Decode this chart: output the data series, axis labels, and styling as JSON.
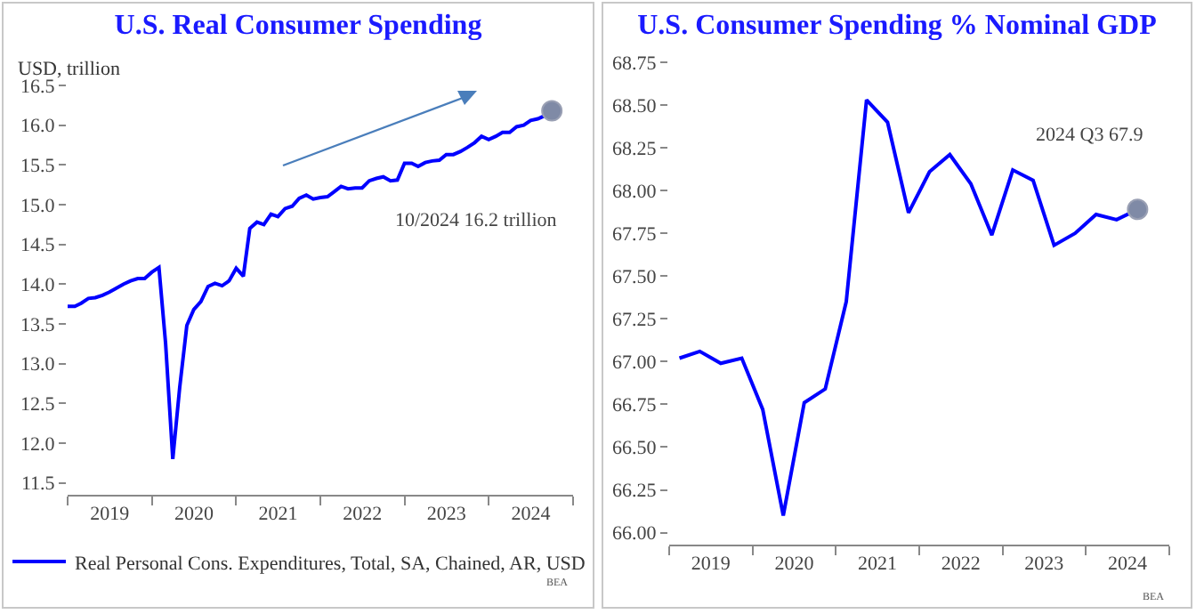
{
  "chart_data": [
    {
      "type": "line",
      "title": "U.S. Real Consumer Spending",
      "ylabel": "USD, trillion",
      "legend": "bottom",
      "grid": false,
      "line_style": "solid",
      "xlim": [
        "2019-01-01",
        "2025-01-01"
      ],
      "ylim": [
        11.35,
        16.5
      ],
      "xticks": [
        {
          "value": "2019-01-01",
          "label": null
        },
        {
          "value": "2019-07-02",
          "label": "2019"
        },
        {
          "value": "2020-01-01",
          "label": null
        },
        {
          "value": "2020-07-02",
          "label": "2020"
        },
        {
          "value": "2021-01-01",
          "label": null
        },
        {
          "value": "2021-07-02",
          "label": "2021"
        },
        {
          "value": "2022-01-01",
          "label": null
        },
        {
          "value": "2022-07-02",
          "label": "2022"
        },
        {
          "value": "2023-01-01",
          "label": null
        },
        {
          "value": "2023-07-02",
          "label": "2023"
        },
        {
          "value": "2024-01-01",
          "label": null
        },
        {
          "value": "2024-07-02",
          "label": "2024"
        },
        {
          "value": "2025-01-01",
          "label": null
        }
      ],
      "yticks": [
        11.5,
        {
          "value": 12,
          "label": "12.0"
        },
        12.5,
        {
          "value": 13,
          "label": "13.0"
        },
        13.5,
        {
          "value": 14,
          "label": "14.0"
        },
        14.5,
        {
          "value": 15,
          "label": "15.0"
        },
        15.5,
        {
          "value": 16,
          "label": "16.0"
        },
        16.5
      ],
      "annotations": [
        "10/2024 16.2 trillion",
        "BEA"
      ],
      "series": [
        {
          "name": "Real Personal Cons. Expenditures, Total, SA, Chained, AR, USD",
          "color": "#0000ff",
          "x": [
            "2019-01",
            "2019-02",
            "2019-03",
            "2019-04",
            "2019-05",
            "2019-06",
            "2019-07",
            "2019-08",
            "2019-09",
            "2019-10",
            "2019-11",
            "2019-12",
            "2020-01",
            "2020-02",
            "2020-03",
            "2020-04",
            "2020-05",
            "2020-06",
            "2020-07",
            "2020-08",
            "2020-09",
            "2020-10",
            "2020-11",
            "2020-12",
            "2021-01",
            "2021-02",
            "2021-03",
            "2021-04",
            "2021-05",
            "2021-06",
            "2021-07",
            "2021-08",
            "2021-09",
            "2021-10",
            "2021-11",
            "2021-12",
            "2022-01",
            "2022-02",
            "2022-03",
            "2022-04",
            "2022-05",
            "2022-06",
            "2022-07",
            "2022-08",
            "2022-09",
            "2022-10",
            "2022-11",
            "2022-12",
            "2023-01",
            "2023-02",
            "2023-03",
            "2023-04",
            "2023-05",
            "2023-06",
            "2023-07",
            "2023-08",
            "2023-09",
            "2023-10",
            "2023-11",
            "2023-12",
            "2024-01",
            "2024-02",
            "2024-03",
            "2024-04",
            "2024-05",
            "2024-06",
            "2024-07",
            "2024-08",
            "2024-09",
            "2024-10"
          ],
          "values": [
            13.72,
            13.72,
            13.76,
            13.82,
            13.83,
            13.86,
            13.9,
            13.95,
            14.0,
            14.04,
            14.07,
            14.07,
            14.15,
            14.21,
            13.25,
            11.8,
            12.7,
            13.48,
            13.68,
            13.78,
            13.97,
            14.01,
            13.98,
            14.04,
            14.2,
            14.1,
            14.7,
            14.78,
            14.75,
            14.88,
            14.85,
            14.95,
            14.98,
            15.08,
            15.12,
            15.07,
            15.09,
            15.1,
            15.16,
            15.23,
            15.2,
            15.21,
            15.21,
            15.3,
            15.33,
            15.35,
            15.3,
            15.31,
            15.52,
            15.52,
            15.48,
            15.53,
            15.55,
            15.56,
            15.63,
            15.63,
            15.67,
            15.72,
            15.78,
            15.86,
            15.82,
            15.86,
            15.91,
            15.91,
            15.98,
            16.0,
            16.06,
            16.08,
            16.12,
            16.18
          ]
        },
        {
          "type": "scatter",
          "color": "#7f8aa6",
          "x": [
            "2024-10"
          ],
          "values": [
            16.18
          ]
        }
      ]
    },
    {
      "type": "line",
      "title": "U.S. Consumer Spending % Nominal GDP",
      "grid": false,
      "line_style": "solid",
      "legend": false,
      "xlim": [
        "2019-01-01",
        "2025-01-01"
      ],
      "ylim": [
        65.93,
        68.75
      ],
      "xticks": [
        {
          "value": "2019-01-01",
          "label": null
        },
        {
          "value": "2019-07-02",
          "label": "2019"
        },
        {
          "value": "2020-01-01",
          "label": null
        },
        {
          "value": "2020-07-02",
          "label": "2020"
        },
        {
          "value": "2021-01-01",
          "label": null
        },
        {
          "value": "2021-07-02",
          "label": "2021"
        },
        {
          "value": "2022-01-01",
          "label": null
        },
        {
          "value": "2022-07-02",
          "label": "2022"
        },
        {
          "value": "2023-01-01",
          "label": null
        },
        {
          "value": "2023-07-02",
          "label": "2023"
        },
        {
          "value": "2024-01-01",
          "label": null
        },
        {
          "value": "2024-07-02",
          "label": "2024"
        },
        {
          "value": "2025-01-01",
          "label": null
        }
      ],
      "yticks": [
        {
          "value": 66,
          "label": "66.00"
        },
        66.25,
        {
          "value": 66.5,
          "label": "66.50"
        },
        66.75,
        {
          "value": 67,
          "label": "67.00"
        },
        67.25,
        {
          "value": 67.5,
          "label": "67.50"
        },
        67.75,
        {
          "value": 68,
          "label": "68.00"
        },
        68.25,
        {
          "value": 68.5,
          "label": "68.50"
        },
        68.75
      ],
      "annotations": [
        "2024 Q3 67.9",
        "BEA"
      ],
      "series": [
        {
          "color": "#0000ff",
          "x": [
            "2019-02-15",
            "2019-05-15",
            "2019-08-15",
            "2019-11-15",
            "2020-02-15",
            "2020-05-15",
            "2020-08-15",
            "2020-11-15",
            "2021-02-15",
            "2021-05-15",
            "2021-08-15",
            "2021-11-15",
            "2022-02-15",
            "2022-05-15",
            "2022-08-15",
            "2022-11-15",
            "2023-02-15",
            "2023-05-15",
            "2023-08-15",
            "2023-11-15",
            "2024-02-15",
            "2024-05-15",
            "2024-08-15"
          ],
          "values": [
            67.02,
            67.06,
            66.99,
            67.02,
            66.72,
            66.1,
            66.76,
            66.84,
            67.35,
            68.53,
            68.4,
            67.87,
            68.11,
            68.21,
            68.04,
            67.74,
            68.12,
            68.06,
            67.68,
            67.75,
            67.86,
            67.83,
            67.89
          ]
        },
        {
          "type": "scatter",
          "color": "#7f8aa6",
          "x": [
            "2024-08-15"
          ],
          "values": [
            67.89
          ]
        }
      ]
    }
  ]
}
